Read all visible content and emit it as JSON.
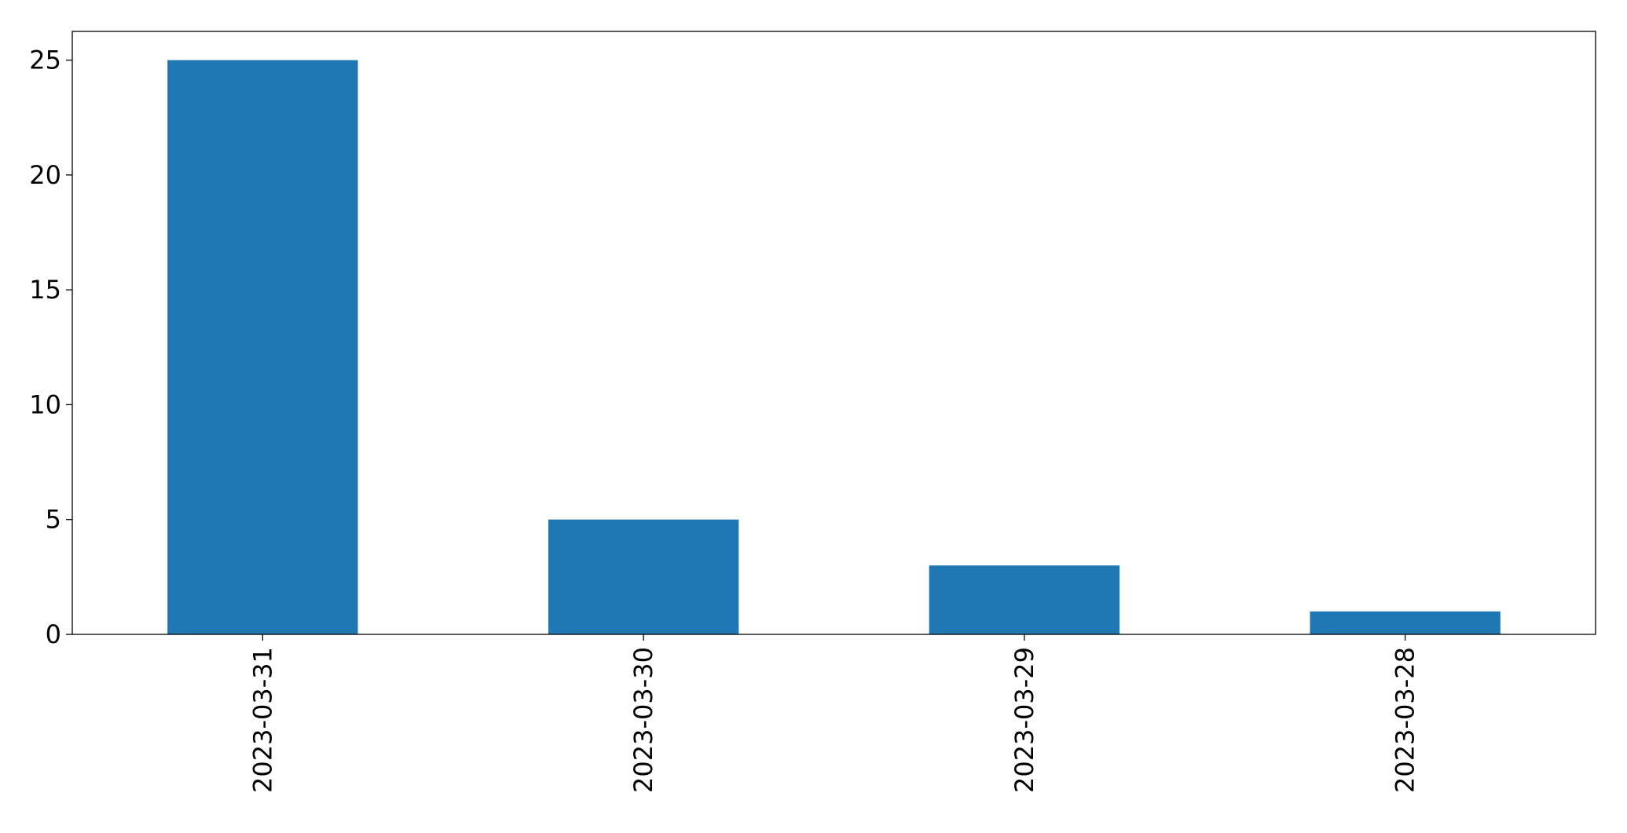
{
  "chart_data": {
    "type": "bar",
    "categories": [
      "2023-03-31",
      "2023-03-30",
      "2023-03-29",
      "2023-03-28"
    ],
    "values": [
      25,
      5,
      3,
      1
    ],
    "color": "#1f77b4",
    "ylim": [
      0,
      26.25
    ],
    "yticks": [
      0,
      5,
      10,
      15,
      20,
      25
    ],
    "grid": false
  }
}
